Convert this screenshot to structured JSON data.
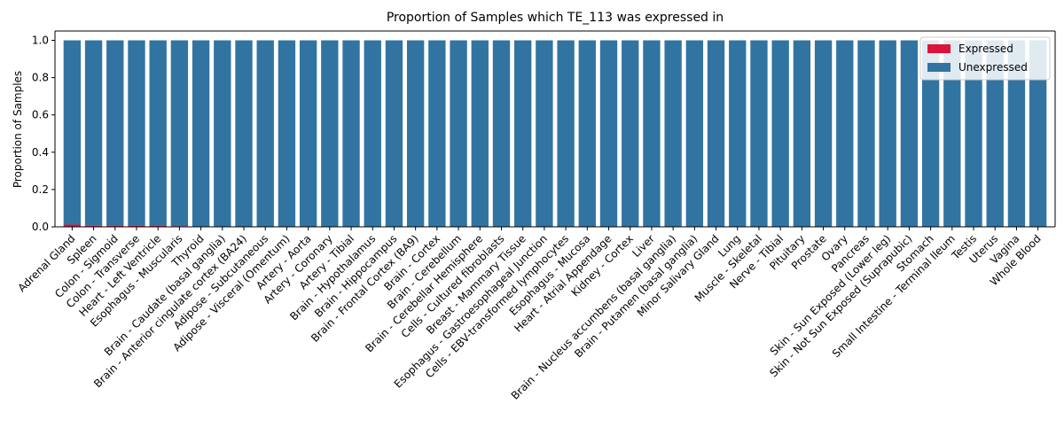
{
  "chart_data": {
    "type": "bar",
    "stacked": true,
    "title": "Proportion of Samples which TE_113 was expressed in",
    "xlabel": "",
    "ylabel": "Proportion of Samples",
    "ylim": [
      0,
      1.05
    ],
    "yticks": [
      "0.0",
      "0.2",
      "0.4",
      "0.6",
      "0.8",
      "1.0"
    ],
    "grid": false,
    "legend_position": "top-right",
    "categories": [
      "Adrenal Gland",
      "Spleen",
      "Colon - Sigmoid",
      "Colon - Transverse",
      "Heart - Left Ventricle",
      "Esophagus - Muscularis",
      "Thyroid",
      "Brain - Caudate (basal ganglia)",
      "Brain - Anterior cingulate cortex (BA24)",
      "Adipose - Subcutaneous",
      "Adipose - Visceral (Omentum)",
      "Artery - Aorta",
      "Artery - Coronary",
      "Artery - Tibial",
      "Brain - Hypothalamus",
      "Brain - Hippocampus",
      "Brain - Frontal Cortex (BA9)",
      "Brain - Cortex",
      "Brain - Cerebellum",
      "Brain - Cerebellar Hemisphere",
      "Cells - Cultured fibroblasts",
      "Breast - Mammary Tissue",
      "Esophagus - Gastroesophageal Junction",
      "Cells - EBV-transformed lymphocytes",
      "Esophagus - Mucosa",
      "Heart - Atrial Appendage",
      "Kidney - Cortex",
      "Liver",
      "Brain - Nucleus accumbens (basal ganglia)",
      "Brain - Putamen (basal ganglia)",
      "Minor Salivary Gland",
      "Lung",
      "Muscle - Skeletal",
      "Nerve - Tibial",
      "Pituitary",
      "Prostate",
      "Ovary",
      "Pancreas",
      "Skin - Sun Exposed (Lower leg)",
      "Skin - Not Sun Exposed (Suprapubic)",
      "Stomach",
      "Small Intestine - Terminal Ileum",
      "Testis",
      "Uterus",
      "Vagina",
      "Whole Blood"
    ],
    "series": [
      {
        "name": "Expressed",
        "color": "#dc143c",
        "values": [
          0.012,
          0.006,
          0.005,
          0.005,
          0.005,
          0.004,
          0,
          0,
          0,
          0,
          0,
          0,
          0,
          0,
          0,
          0,
          0,
          0,
          0,
          0,
          0,
          0,
          0,
          0,
          0,
          0,
          0,
          0,
          0,
          0,
          0,
          0,
          0,
          0,
          0,
          0,
          0,
          0,
          0,
          0,
          0,
          0,
          0,
          0,
          0,
          0
        ]
      },
      {
        "name": "Unexpressed",
        "color": "#3274a1",
        "values": [
          0.988,
          0.994,
          0.995,
          0.995,
          0.995,
          0.996,
          1,
          1,
          1,
          1,
          1,
          1,
          1,
          1,
          1,
          1,
          1,
          1,
          1,
          1,
          1,
          1,
          1,
          1,
          1,
          1,
          1,
          1,
          1,
          1,
          1,
          1,
          1,
          1,
          1,
          1,
          1,
          1,
          1,
          1,
          1,
          1,
          1,
          1,
          1,
          1
        ]
      }
    ]
  }
}
